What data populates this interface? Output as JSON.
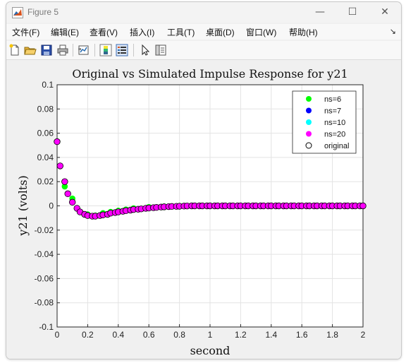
{
  "window": {
    "title": "Figure 5",
    "minimize_glyph": "—",
    "maximize_glyph": "☐",
    "close_glyph": "✕"
  },
  "menu": {
    "items": [
      "文件(F)",
      "编辑(E)",
      "查看(V)",
      "插入(I)",
      "工具(T)",
      "桌面(D)",
      "窗口(W)",
      "帮助(H)"
    ],
    "overflow_glyph": "↘"
  },
  "toolbar": {
    "icons": [
      "new-figure-icon",
      "open-file-icon",
      "save-icon",
      "print-icon",
      "link-plot-icon",
      "colorbar-icon",
      "legend-icon",
      "edit-plot-arrow-icon",
      "property-inspector-icon"
    ]
  },
  "colors": {
    "ns6": "#00ff00",
    "ns7": "#0000ff",
    "ns10": "#00ffff",
    "ns20": "#ff00ff",
    "original": "#000000"
  },
  "chart_data": {
    "type": "scatter",
    "title": "Original vs Simulated Impulse Response for y21",
    "xlabel": "second",
    "ylabel": "y21 (volts)",
    "xlim": [
      0,
      2
    ],
    "ylim": [
      -0.1,
      0.1
    ],
    "xticks": [
      "0",
      "0.2",
      "0.4",
      "0.6",
      "0.8",
      "1",
      "1.2",
      "1.4",
      "1.6",
      "1.8",
      "2"
    ],
    "yticks": [
      "0.1",
      "0.08",
      "0.06",
      "0.04",
      "0.02",
      "0",
      "-0.02",
      "-0.04",
      "-0.06",
      "-0.08",
      "-0.1"
    ],
    "grid": true,
    "legend_position": "top-right",
    "series": [
      {
        "name": "ns=6",
        "marker": "filled-circle",
        "color": "#00ff00",
        "x": [
          0,
          0.05,
          0.1,
          0.15,
          0.2,
          0.25,
          0.3,
          0.35,
          0.4,
          0.45,
          0.5,
          0.6,
          0.7,
          0.8,
          1.0,
          1.2,
          1.4,
          1.6,
          1.8,
          2.0
        ],
        "y": [
          0.053,
          0.016,
          0.006,
          -0.005,
          -0.007,
          -0.008,
          -0.006,
          -0.005,
          -0.004,
          -0.003,
          -0.002,
          -0.001,
          -0.0005,
          0,
          0,
          0,
          0,
          0,
          0,
          0
        ]
      },
      {
        "name": "ns=7",
        "marker": "filled-circle",
        "color": "#0000ff",
        "x": [],
        "y": []
      },
      {
        "name": "ns=10",
        "marker": "filled-circle",
        "color": "#00ffff",
        "x": [],
        "y": []
      },
      {
        "name": "ns=20",
        "marker": "filled-circle",
        "color": "#ff00ff",
        "x": [
          0,
          0.02,
          0.05,
          0.07,
          0.1,
          0.13,
          0.15,
          0.18,
          0.2,
          0.23,
          0.25,
          0.28,
          0.3,
          0.33,
          0.35,
          0.38,
          0.4,
          0.43,
          0.45,
          0.48,
          0.5,
          0.53,
          0.55,
          0.58,
          0.6,
          0.63,
          0.65,
          0.68,
          0.7,
          0.73,
          0.75,
          0.78,
          0.8,
          0.83,
          0.85,
          0.88,
          0.9,
          0.93,
          0.95,
          0.98,
          1.0,
          1.03,
          1.05,
          1.08,
          1.1,
          1.13,
          1.15,
          1.18,
          1.2,
          1.23,
          1.25,
          1.28,
          1.3,
          1.33,
          1.35,
          1.38,
          1.4,
          1.43,
          1.45,
          1.48,
          1.5,
          1.53,
          1.55,
          1.58,
          1.6,
          1.63,
          1.65,
          1.68,
          1.7,
          1.73,
          1.75,
          1.78,
          1.8,
          1.83,
          1.85,
          1.88,
          1.9,
          1.93,
          1.95,
          1.98,
          2.0
        ],
        "y": [
          0.053,
          0.033,
          0.02,
          0.01,
          0.003,
          -0.002,
          -0.005,
          -0.007,
          -0.008,
          -0.0085,
          -0.0085,
          -0.008,
          -0.0075,
          -0.007,
          -0.006,
          -0.0055,
          -0.005,
          -0.0045,
          -0.004,
          -0.0035,
          -0.003,
          -0.0028,
          -0.0025,
          -0.002,
          -0.0018,
          -0.0015,
          -0.0013,
          -0.001,
          -0.0008,
          -0.0006,
          -0.0005,
          -0.0004,
          -0.0003,
          -0.0002,
          -0.0001,
          0,
          0,
          0,
          0,
          0,
          0,
          0,
          0,
          0,
          0,
          0,
          0,
          0,
          0,
          0,
          0,
          0,
          0,
          0,
          0,
          0,
          0,
          0,
          0,
          0,
          0,
          0,
          0,
          0,
          0,
          0,
          0,
          0,
          0,
          0,
          0,
          0,
          0,
          0,
          0,
          0,
          0,
          0,
          0,
          0,
          0
        ]
      }
    ],
    "legend": [
      "ns=6",
      "ns=7",
      "ns=10",
      "ns=20",
      "original"
    ]
  }
}
